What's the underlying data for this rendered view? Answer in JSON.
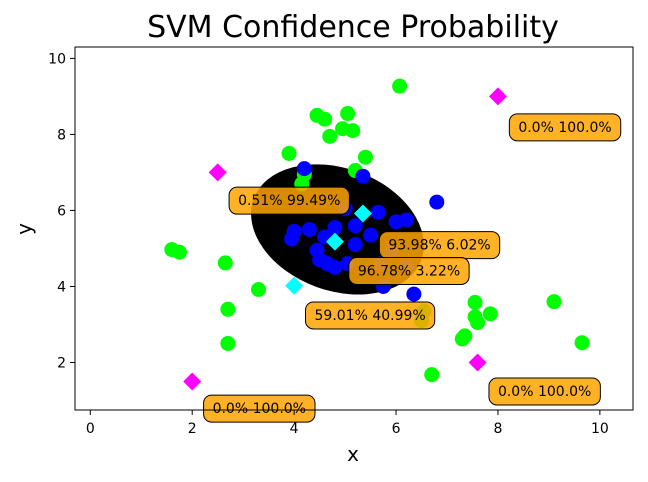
{
  "chart_data": {
    "type": "scatter",
    "title": "SVM Confidence Probability",
    "xlabel": "x",
    "ylabel": "y",
    "xlim": [
      -0.3,
      10.65
    ],
    "ylim": [
      0.75,
      10.3
    ],
    "xticks": [
      0,
      2,
      4,
      6,
      8,
      10
    ],
    "yticks": [
      2,
      4,
      6,
      8,
      10
    ],
    "grid": false,
    "colors": {
      "class_outer": "#00ff00",
      "class_inner": "#0000ff",
      "boundary_fill": "#000000",
      "query_inside": "#00ffff",
      "query_outside": "#ff00ff",
      "annotation_box": "#ffa500"
    },
    "series": [
      {
        "marker": "circle",
        "color": "#00ff00",
        "points": [
          [
            6.07,
            9.27
          ],
          [
            4.45,
            8.5
          ],
          [
            4.6,
            8.4
          ],
          [
            5.05,
            8.55
          ],
          [
            4.95,
            8.15
          ],
          [
            5.15,
            8.1
          ],
          [
            4.7,
            7.95
          ],
          [
            3.9,
            7.5
          ],
          [
            5.4,
            7.4
          ],
          [
            5.2,
            7.05
          ],
          [
            4.2,
            6.95
          ],
          [
            4.15,
            6.7
          ],
          [
            1.6,
            4.97
          ],
          [
            1.75,
            4.9
          ],
          [
            2.65,
            4.62
          ],
          [
            2.7,
            3.4
          ],
          [
            3.3,
            3.92
          ],
          [
            2.7,
            2.5
          ],
          [
            6.55,
            3.35
          ],
          [
            6.5,
            3.1
          ],
          [
            6.7,
            1.68
          ],
          [
            7.3,
            2.62
          ],
          [
            7.35,
            2.7
          ],
          [
            7.55,
            3.58
          ],
          [
            7.55,
            3.2
          ],
          [
            7.6,
            3.05
          ],
          [
            7.85,
            3.28
          ],
          [
            9.1,
            3.6
          ],
          [
            9.65,
            2.52
          ]
        ]
      },
      {
        "marker": "circle",
        "color": "#0000ff",
        "points": [
          [
            4.2,
            7.1
          ],
          [
            5.35,
            6.9
          ],
          [
            6.8,
            6.22
          ],
          [
            5.0,
            6.05
          ],
          [
            5.65,
            5.95
          ],
          [
            6.0,
            5.7
          ],
          [
            6.2,
            5.75
          ],
          [
            5.2,
            5.6
          ],
          [
            4.8,
            5.55
          ],
          [
            4.3,
            5.5
          ],
          [
            4.0,
            5.45
          ],
          [
            3.95,
            5.25
          ],
          [
            4.6,
            5.3
          ],
          [
            5.5,
            5.35
          ],
          [
            5.2,
            5.1
          ],
          [
            4.45,
            4.95
          ],
          [
            4.5,
            4.7
          ],
          [
            4.65,
            4.6
          ],
          [
            4.8,
            4.5
          ],
          [
            5.05,
            4.6
          ],
          [
            5.7,
            4.6
          ],
          [
            6.2,
            4.55
          ],
          [
            5.75,
            4.0
          ],
          [
            6.35,
            3.8
          ],
          [
            5.9,
            4.9
          ]
        ]
      },
      {
        "marker": "diamond",
        "color": "#00ffff",
        "points": [
          [
            5.35,
            5.92
          ],
          [
            4.8,
            5.18
          ],
          [
            4.0,
            4.02
          ]
        ]
      },
      {
        "marker": "diamond",
        "color": "#ff00ff",
        "points": [
          [
            2.5,
            7.0
          ],
          [
            8.0,
            9.0
          ],
          [
            2.0,
            1.5
          ],
          [
            7.6,
            2.0
          ]
        ]
      }
    ],
    "decision_region": {
      "center": [
        4.85,
        5.5
      ],
      "radius_x": 1.75,
      "radius_y": 1.75
    },
    "annotations": [
      {
        "text": "0.0% 100.0%",
        "x": 8.4,
        "y": 8.2
      },
      {
        "text": "0.51% 99.49%",
        "x": 2.9,
        "y": 6.27
      },
      {
        "text": "93.98% 6.02%",
        "x": 5.85,
        "y": 5.1
      },
      {
        "text": "96.78% 3.22%",
        "x": 5.25,
        "y": 4.42
      },
      {
        "text": "59.01% 40.99%",
        "x": 4.4,
        "y": 3.25
      },
      {
        "text": "0.0% 100.0%",
        "x": 8.0,
        "y": 1.25
      },
      {
        "text": "0.0% 100.0%",
        "x": 2.4,
        "y": 0.8
      }
    ]
  }
}
